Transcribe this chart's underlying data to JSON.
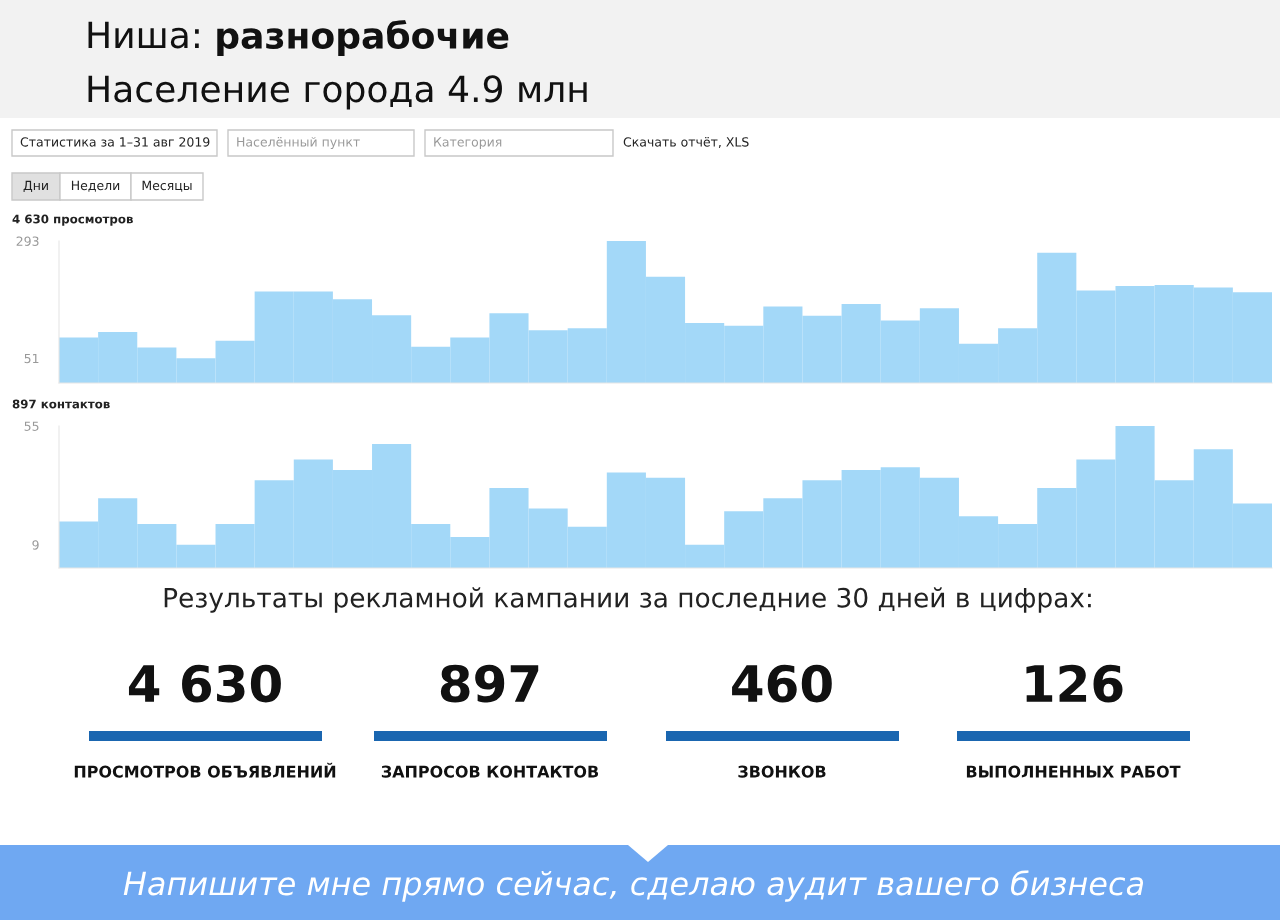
{
  "chart_data": [
    {
      "type": "other",
      "title": "Ниша: разнорабочие",
      "subtitle": "Население города 4.9 млн",
      "annotations": [
        "Статистика за 1–31 авг 2019",
        "Населённый пункт",
        "Категория",
        "Скачать отчёт, XLS",
        "Дни",
        "Недели",
        "Месяцы"
      ]
    },
    {
      "type": "bar",
      "title": "4 630 просмотров",
      "color": "#a3d8f8",
      "categories": [
        null,
        null,
        null,
        null,
        null,
        null,
        null,
        null,
        null,
        null,
        null,
        null,
        null,
        null,
        null,
        null,
        null,
        null,
        null,
        null,
        null,
        null,
        null,
        null,
        null,
        null,
        null,
        null,
        null,
        null,
        null
      ],
      "values": [
        94,
        105,
        73,
        51,
        87,
        189,
        189,
        173,
        140,
        75,
        94,
        144,
        109,
        113,
        293,
        219,
        124,
        118,
        158,
        139,
        163,
        129,
        154,
        81,
        113,
        269,
        191,
        200,
        202,
        197,
        187
      ],
      "ylim": [
        0,
        293
      ],
      "yticks": [
        51,
        293
      ],
      "grid": false
    },
    {
      "type": "bar",
      "title": "897 контактов",
      "color": "#a3d8f8",
      "categories": [
        null,
        null,
        null,
        null,
        null,
        null,
        null,
        null,
        null,
        null,
        null,
        null,
        null,
        null,
        null,
        null,
        null,
        null,
        null,
        null,
        null,
        null,
        null,
        null,
        null,
        null,
        null,
        null,
        null,
        null,
        null
      ],
      "values": [
        18,
        27,
        17,
        9,
        17,
        34,
        42,
        38,
        48,
        17,
        12,
        31,
        23,
        16,
        37,
        35,
        9,
        22,
        27,
        34,
        38,
        39,
        35,
        20,
        17,
        31,
        42,
        55,
        34,
        46,
        25
      ],
      "ylim": [
        0,
        55
      ],
      "yticks": [
        9,
        55
      ],
      "grid": false
    },
    {
      "type": "other",
      "title": "Результаты рекламной кампании за последние 30 дней в цифрах:",
      "annotations": [
        "4 630",
        "897",
        "460",
        "126",
        "ПРОСМОТРОВ ОБЪЯВЛЕНИЙ",
        "ЗАПРОСОВ КОНТАКТОВ",
        "ЗВОНКОВ",
        "ВЫПОЛНЕННЫХ РАБОТ",
        "Напишите мне прямо сейчас, сделаю аудит вашего бизнеса"
      ]
    }
  ]
}
